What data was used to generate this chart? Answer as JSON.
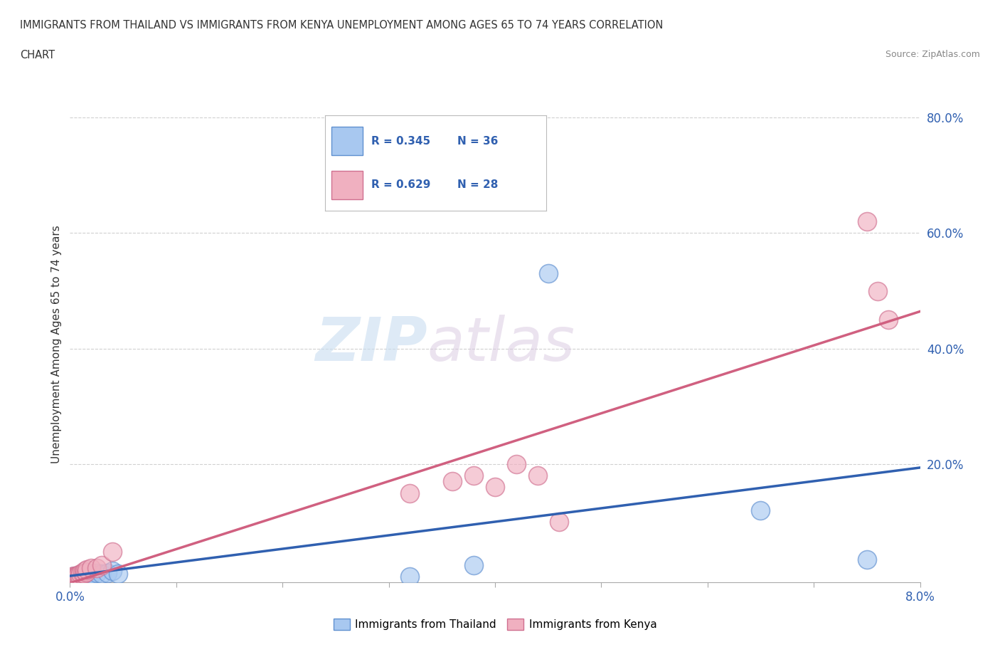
{
  "title_line1": "IMMIGRANTS FROM THAILAND VS IMMIGRANTS FROM KENYA UNEMPLOYMENT AMONG AGES 65 TO 74 YEARS CORRELATION",
  "title_line2": "CHART",
  "source": "Source: ZipAtlas.com",
  "ylabel": "Unemployment Among Ages 65 to 74 years",
  "xlim": [
    0.0,
    0.08
  ],
  "ylim": [
    -0.005,
    0.82
  ],
  "xticks": [
    0.0,
    0.01,
    0.02,
    0.03,
    0.04,
    0.05,
    0.06,
    0.07,
    0.08
  ],
  "xticklabels_show": [
    "0.0%",
    "",
    "",
    "",
    "",
    "",
    "",
    "",
    "8.0%"
  ],
  "yticks_right": [
    0.2,
    0.4,
    0.6,
    0.8
  ],
  "yticklabels_right": [
    "20.0%",
    "40.0%",
    "60.0%",
    "80.0%"
  ],
  "thailand_color": "#a8c8f0",
  "thailand_edge": "#6090d0",
  "kenya_color": "#f0b0c0",
  "kenya_edge": "#d07090",
  "thailand_R": 0.345,
  "thailand_N": 36,
  "kenya_R": 0.629,
  "kenya_N": 28,
  "thailand_line_color": "#3060b0",
  "kenya_line_color": "#d06080",
  "background_color": "#ffffff",
  "watermark_zip": "ZIP",
  "watermark_atlas": "atlas",
  "grid_color": "#d0d0d0",
  "thailand_x": [
    0.0002,
    0.0003,
    0.0004,
    0.0005,
    0.0005,
    0.0006,
    0.0006,
    0.0007,
    0.0007,
    0.0008,
    0.0008,
    0.0009,
    0.0009,
    0.001,
    0.001,
    0.001,
    0.0012,
    0.0012,
    0.0013,
    0.0014,
    0.0015,
    0.0015,
    0.0016,
    0.0017,
    0.002,
    0.002,
    0.0025,
    0.003,
    0.0035,
    0.004,
    0.0045,
    0.032,
    0.038,
    0.045,
    0.065,
    0.075
  ],
  "thailand_y": [
    0.005,
    0.003,
    0.004,
    0.006,
    0.003,
    0.005,
    0.004,
    0.006,
    0.004,
    0.005,
    0.007,
    0.006,
    0.004,
    0.007,
    0.005,
    0.008,
    0.007,
    0.005,
    0.008,
    0.006,
    0.009,
    0.007,
    0.01,
    0.008,
    0.01,
    0.008,
    0.012,
    0.01,
    0.012,
    0.015,
    0.01,
    0.005,
    0.025,
    0.53,
    0.12,
    0.035
  ],
  "kenya_x": [
    0.0002,
    0.0003,
    0.0004,
    0.0005,
    0.0006,
    0.0007,
    0.0008,
    0.0009,
    0.001,
    0.0012,
    0.0013,
    0.0014,
    0.0015,
    0.0016,
    0.002,
    0.0025,
    0.003,
    0.004,
    0.032,
    0.036,
    0.038,
    0.04,
    0.042,
    0.044,
    0.046,
    0.075,
    0.076,
    0.077
  ],
  "kenya_y": [
    0.005,
    0.004,
    0.006,
    0.005,
    0.007,
    0.006,
    0.008,
    0.007,
    0.01,
    0.012,
    0.01,
    0.015,
    0.013,
    0.018,
    0.02,
    0.02,
    0.025,
    0.048,
    0.15,
    0.17,
    0.18,
    0.16,
    0.2,
    0.18,
    0.1,
    0.62,
    0.5,
    0.45
  ]
}
